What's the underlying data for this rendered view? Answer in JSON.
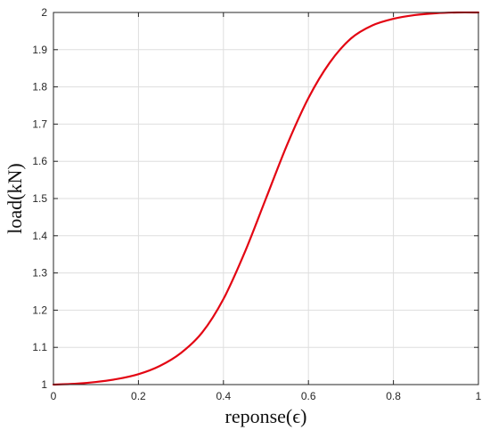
{
  "chart_data": {
    "type": "line",
    "title": "",
    "xlabel": "reponse(ϵ)",
    "ylabel": "load(kN)",
    "xlim": [
      0,
      1
    ],
    "ylim": [
      1,
      2
    ],
    "x_ticks": [
      "0",
      "0.2",
      "0.4",
      "0.6",
      "0.8",
      "1"
    ],
    "y_ticks": [
      "1",
      "1.1",
      "1.2",
      "1.3",
      "1.4",
      "1.5",
      "1.6",
      "1.7",
      "1.8",
      "1.9",
      "2"
    ],
    "grid": true,
    "series": [
      {
        "color": "#e30613",
        "x": [
          0,
          0.05,
          0.1,
          0.15,
          0.2,
          0.25,
          0.3,
          0.35,
          0.4,
          0.45,
          0.5,
          0.55,
          0.6,
          0.65,
          0.7,
          0.75,
          0.8,
          0.85,
          0.9,
          0.95,
          1
        ],
        "y": [
          1.0,
          1.002,
          1.007,
          1.015,
          1.028,
          1.05,
          1.085,
          1.14,
          1.23,
          1.355,
          1.5,
          1.645,
          1.77,
          1.865,
          1.93,
          1.965,
          1.983,
          1.993,
          1.998,
          2.0,
          2.0
        ]
      }
    ]
  }
}
